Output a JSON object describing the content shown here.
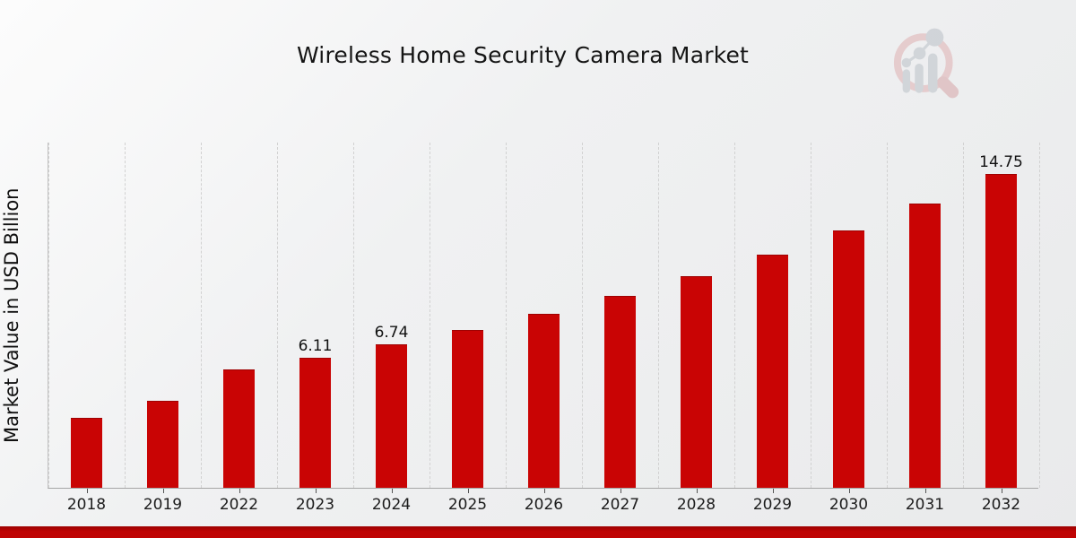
{
  "header": {
    "title": "Wireless Home Security Camera Market"
  },
  "branding": {
    "logo_name": "magnifier-bar-chart-watermark",
    "ring_color": "#e4c6c8",
    "handle_color": "#debfc1",
    "bars_color": "#cdd1d6"
  },
  "chart_data": {
    "type": "bar",
    "title": "Wireless Home Security Camera Market",
    "xlabel": "",
    "ylabel": "Market Value in USD Billion",
    "categories": [
      "2018",
      "2019",
      "2022",
      "2023",
      "2024",
      "2025",
      "2026",
      "2027",
      "2028",
      "2029",
      "2030",
      "2031",
      "2032"
    ],
    "values": [
      3.3,
      4.1,
      5.55,
      6.11,
      6.74,
      7.43,
      8.19,
      9.03,
      9.96,
      10.98,
      12.11,
      13.35,
      14.75
    ],
    "data_labels": {
      "2023": "6.11",
      "2024": "6.74",
      "2032": "14.75"
    },
    "bar_color": "#c90404",
    "ylim": [
      0,
      16.27
    ],
    "grid": "vertical-dashed",
    "legend": "none",
    "units": "USD Billion"
  },
  "footer": {
    "stripe_color": "#bf0303"
  }
}
